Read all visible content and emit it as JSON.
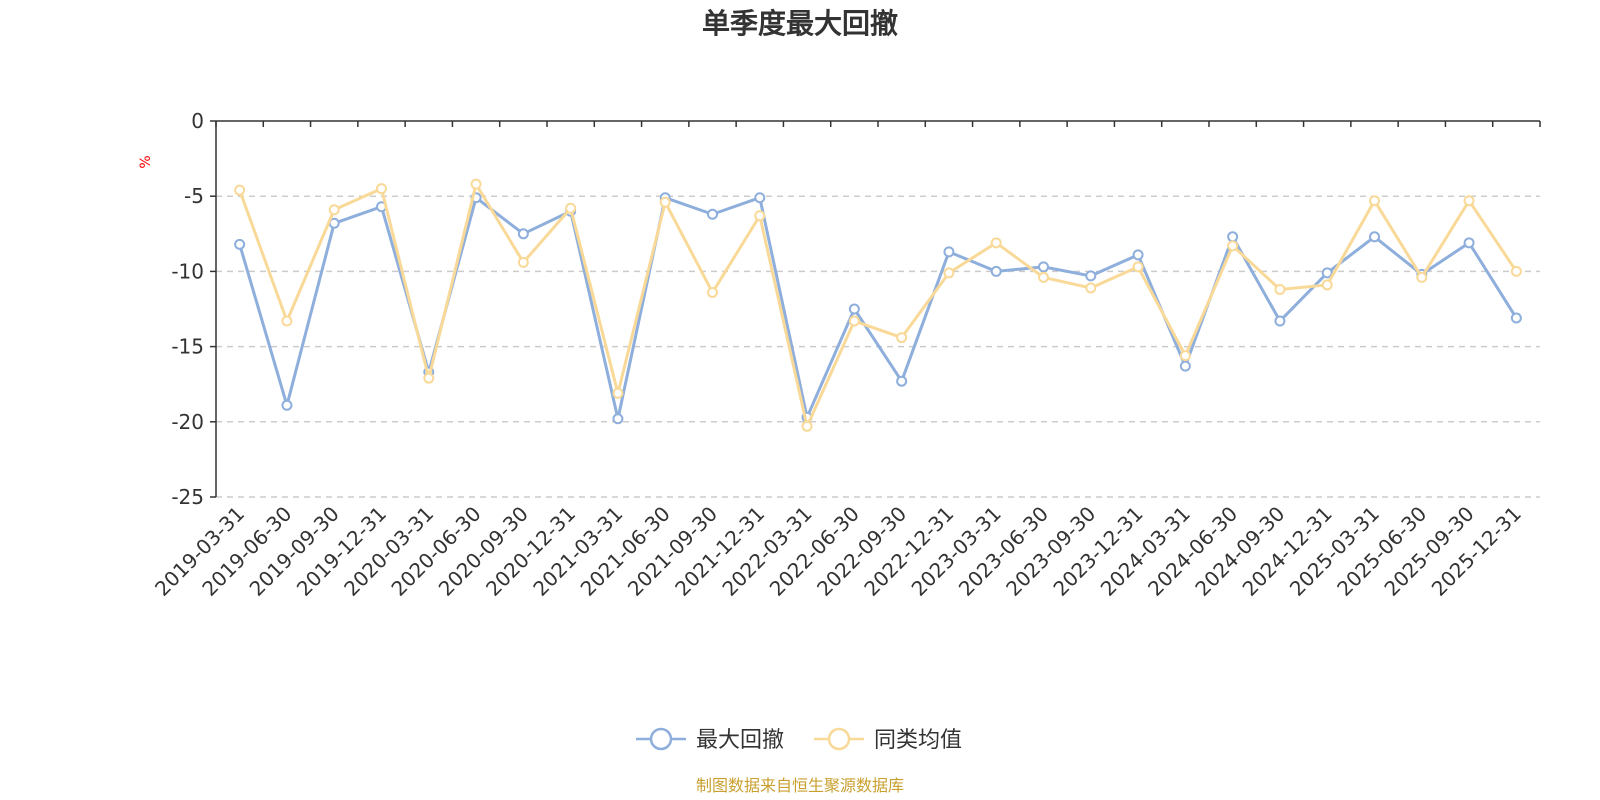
{
  "chart_data": {
    "type": "line",
    "title": "单季度最大回撤",
    "ylabel": "%",
    "xlabel": "",
    "ylim": [
      -25,
      0
    ],
    "yticks": [
      0,
      -5,
      -10,
      -15,
      -20,
      -25
    ],
    "grid": true,
    "legend_position": "bottom-center",
    "categories": [
      "2019-03-31",
      "2019-06-30",
      "2019-09-30",
      "2019-12-31",
      "2020-03-31",
      "2020-06-30",
      "2020-09-30",
      "2020-12-31",
      "2021-03-31",
      "2021-06-30",
      "2021-09-30",
      "2021-12-31",
      "2022-03-31",
      "2022-06-30",
      "2022-09-30",
      "2022-12-31",
      "2023-03-31",
      "2023-06-30",
      "2023-09-30",
      "2023-12-31",
      "2024-03-31",
      "2024-06-30",
      "2024-09-30",
      "2024-12-31",
      "2025-03-31",
      "2025-06-30",
      "2025-09-30",
      "2025-12-31"
    ],
    "series": [
      {
        "name": "最大回撤",
        "color": "#8eaedc",
        "values": [
          -8.2,
          -18.9,
          -6.8,
          -5.7,
          -16.7,
          -5.1,
          -7.5,
          -6.0,
          -19.8,
          -5.1,
          -6.2,
          -5.1,
          -19.7,
          -12.5,
          -17.3,
          -8.7,
          -10.0,
          -9.7,
          -10.3,
          -8.9,
          -16.3,
          -7.7,
          -13.3,
          -10.1,
          -7.7,
          -10.2,
          -8.1,
          -13.1
        ]
      },
      {
        "name": "同类均值",
        "color": "#f9d998",
        "values": [
          -4.6,
          -13.3,
          -5.9,
          -4.5,
          -17.1,
          -4.2,
          -9.4,
          -5.8,
          -18.1,
          -5.4,
          -11.4,
          -6.3,
          -20.3,
          -13.3,
          -14.4,
          -10.1,
          -8.1,
          -10.4,
          -11.1,
          -9.7,
          -15.6,
          -8.3,
          -11.2,
          -10.9,
          -5.3,
          -10.4,
          -5.3,
          -10.0
        ]
      }
    ],
    "source": "制图数据来自恒生聚源数据库"
  }
}
